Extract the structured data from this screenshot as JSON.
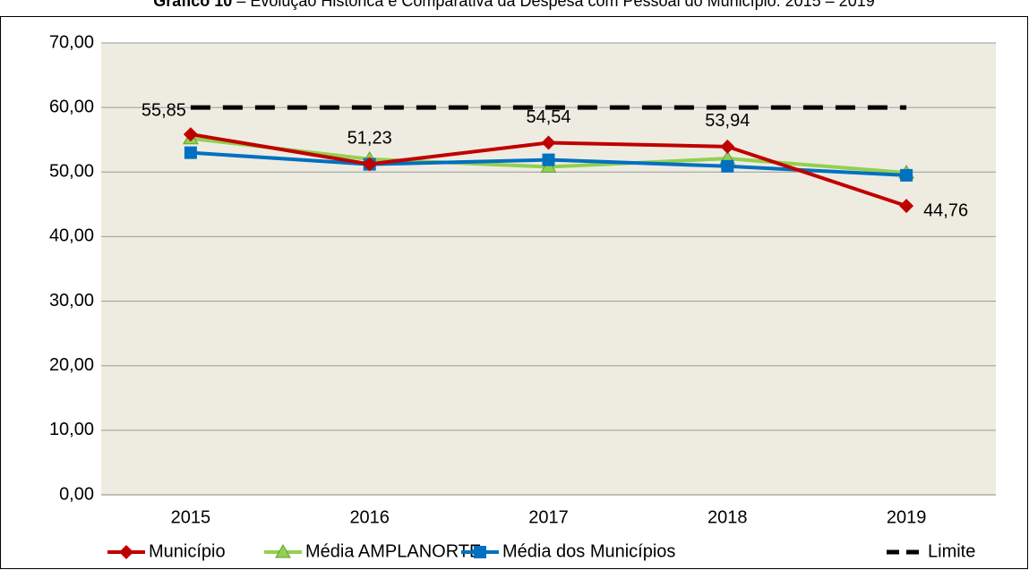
{
  "chart_data": {
    "type": "line",
    "title_label": "Gráfico 10",
    "title": "– Evolução Histórica e Comparativa da Despesa com Pessoal do Município: 2015 – 2019",
    "categories": [
      "2015",
      "2016",
      "2017",
      "2018",
      "2019"
    ],
    "series": [
      {
        "name": "Município",
        "color": "#c00000",
        "marker": "diamond",
        "values": [
          55.85,
          51.23,
          54.54,
          53.94,
          44.76
        ],
        "value_labels": [
          "55,85",
          "51,23",
          "54,54",
          "53,94",
          "44,76"
        ]
      },
      {
        "name": "Média AMPLANORTE",
        "color": "#92d050",
        "marker": "triangle",
        "values": [
          55.2,
          52.0,
          50.8,
          52.1,
          49.9
        ]
      },
      {
        "name": "Média dos Municípios",
        "color": "#0070c0",
        "marker": "square",
        "values": [
          53.0,
          51.2,
          51.9,
          50.9,
          49.5
        ]
      },
      {
        "name": "Limite",
        "color": "#000000",
        "marker": "none",
        "dashed": true,
        "values": [
          60,
          60,
          60,
          60,
          60
        ]
      }
    ],
    "ylim": [
      0,
      70
    ],
    "yticks": [
      {
        "value": 0,
        "label": "0,00"
      },
      {
        "value": 10,
        "label": "10,00"
      },
      {
        "value": 20,
        "label": "20,00"
      },
      {
        "value": 30,
        "label": "30,00"
      },
      {
        "value": 40,
        "label": "40,00"
      },
      {
        "value": 50,
        "label": "50,00"
      },
      {
        "value": 60,
        "label": "60,00"
      },
      {
        "value": 70,
        "label": "70,00"
      }
    ],
    "grid": true,
    "legend": "bottom"
  }
}
